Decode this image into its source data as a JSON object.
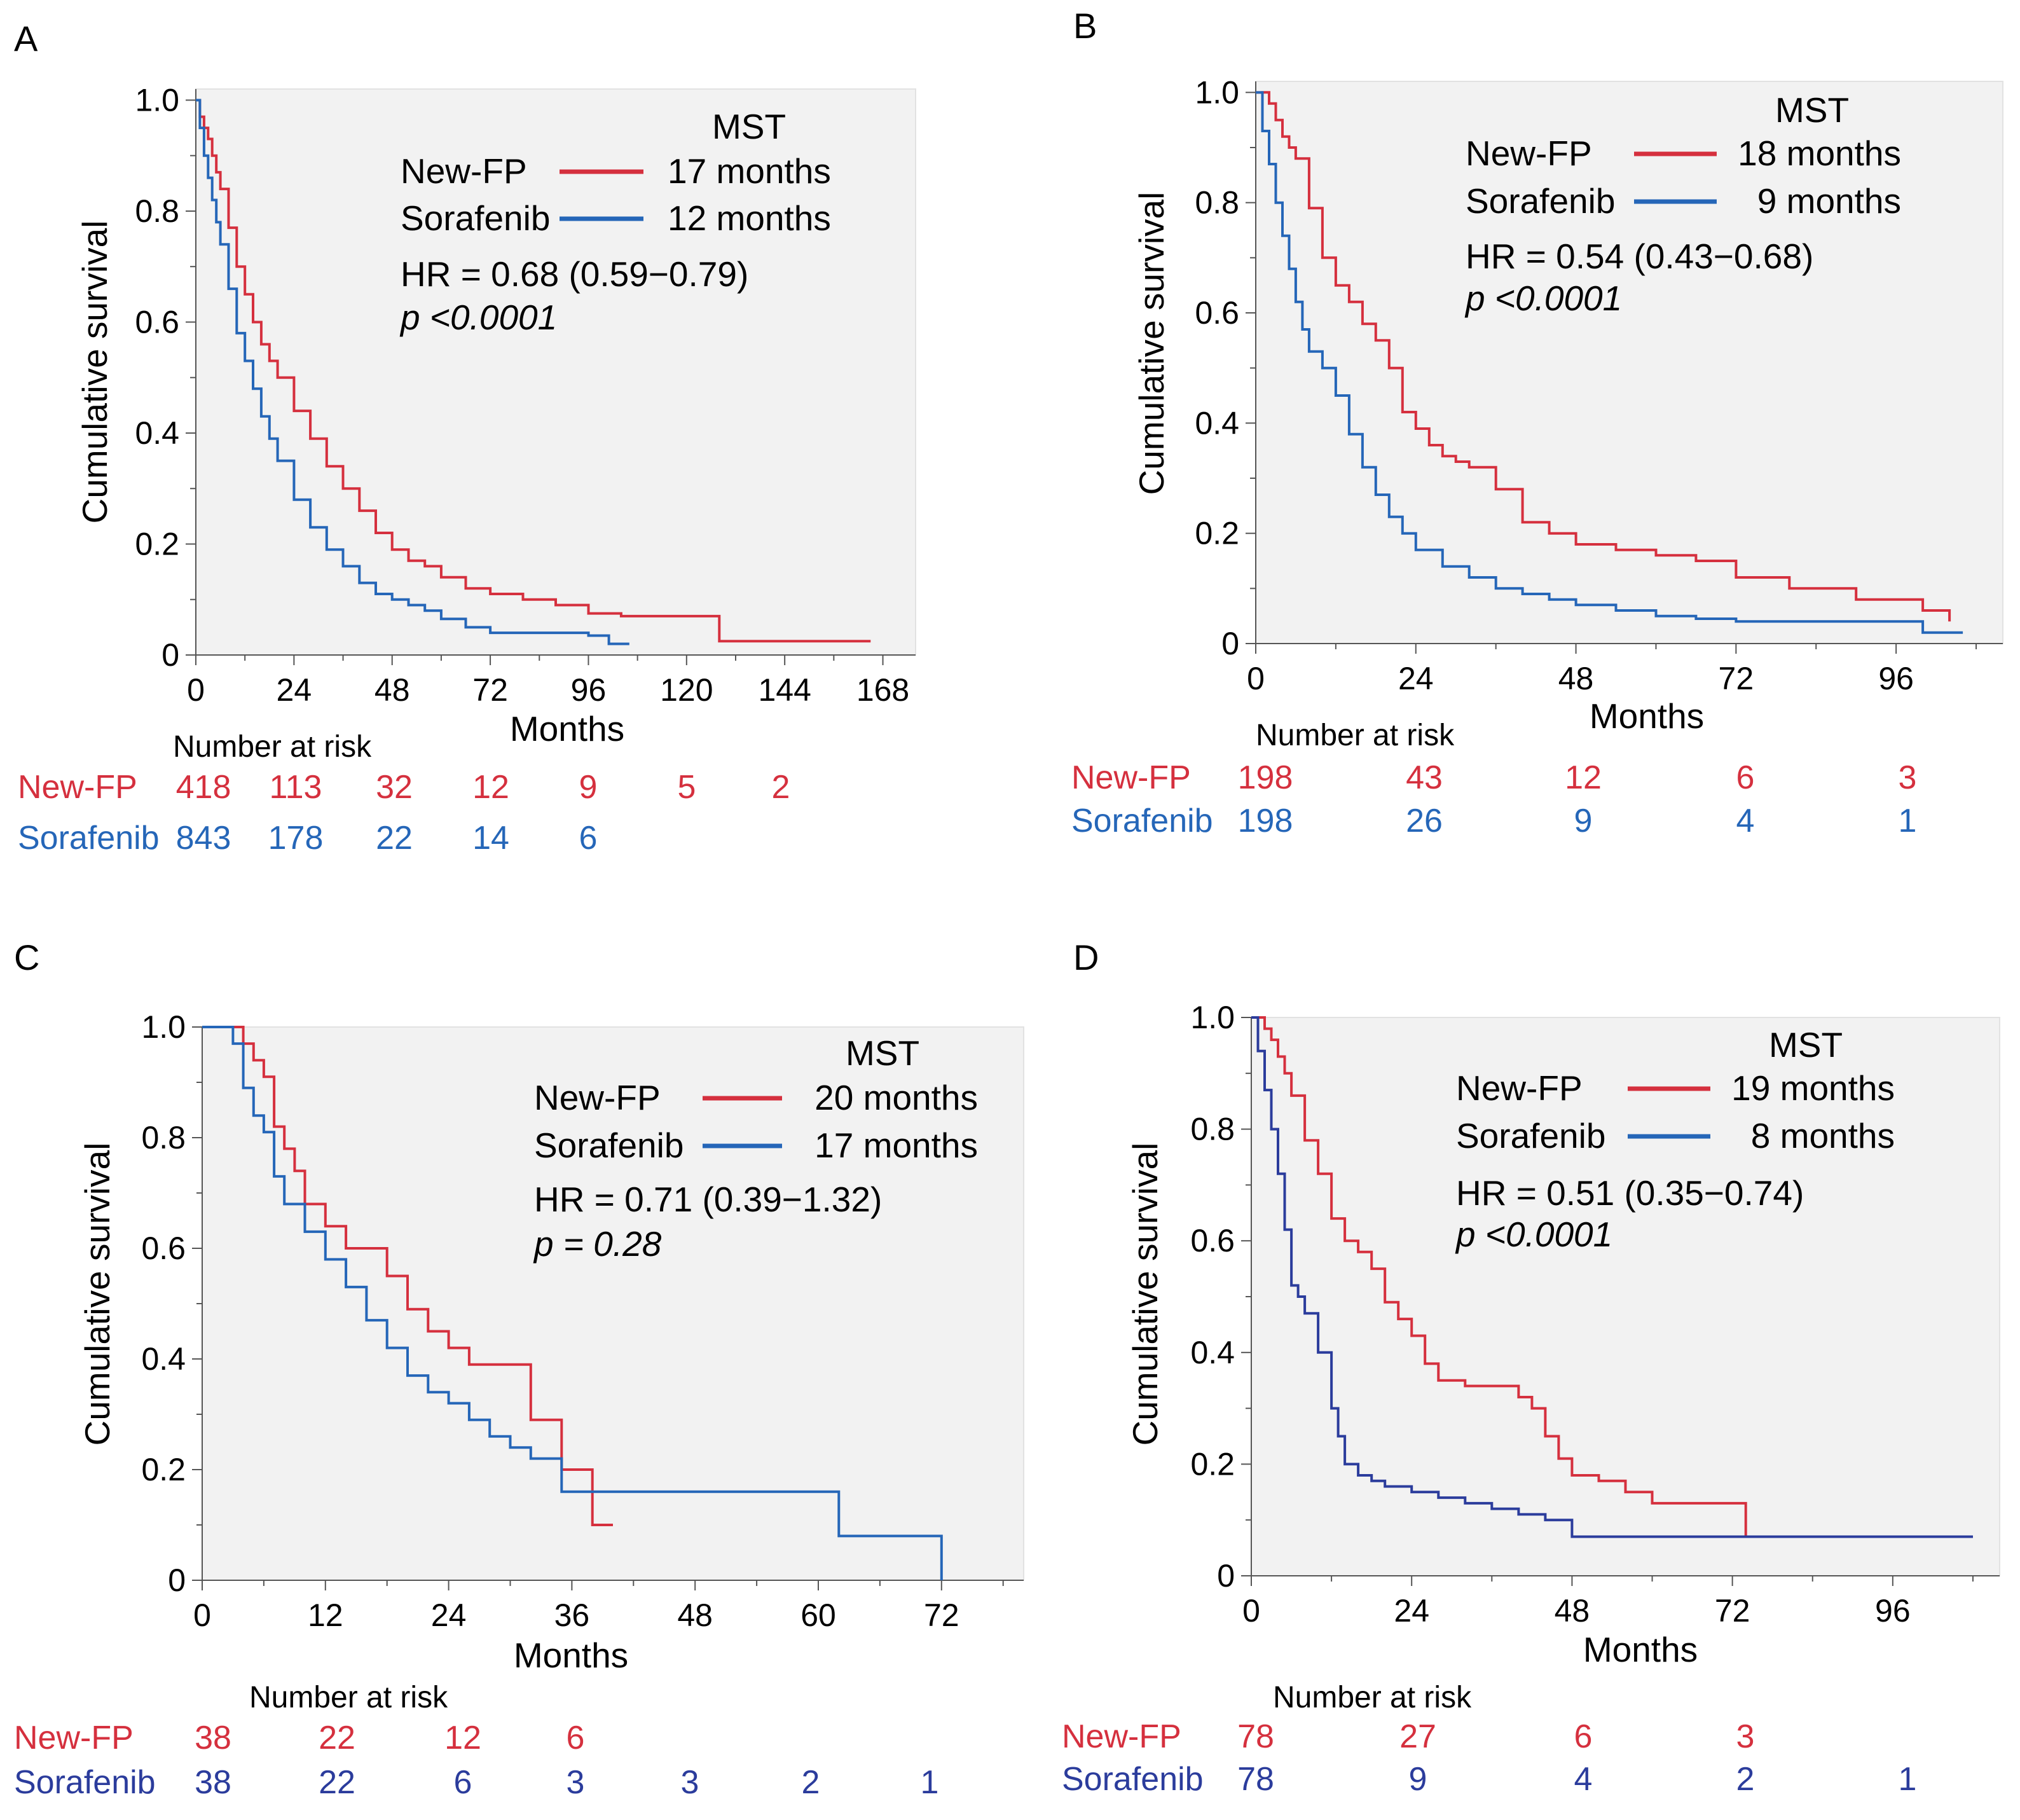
{
  "chart_data": [
    {
      "type": "line",
      "panel_label": "A",
      "ylabel": "Cumulative survival",
      "xlabel": "Months",
      "xlim": [
        0,
        176
      ],
      "ylim": [
        0,
        1.02
      ],
      "xticks": [
        "0",
        "24",
        "48",
        "72",
        "96",
        "120",
        "144",
        "168"
      ],
      "xtick_values": [
        0,
        24,
        48,
        72,
        96,
        120,
        144,
        168
      ],
      "yticks": [
        "0",
        "0.2",
        "0.4",
        "0.6",
        "0.8",
        "1.0"
      ],
      "ytick_values": [
        0,
        0.2,
        0.4,
        0.6,
        0.8,
        1.0
      ],
      "legend": {
        "header": "MST",
        "entries": [
          {
            "name": "New-FP",
            "mst": "17 months",
            "color": "#d5303e"
          },
          {
            "name": "Sorafenib",
            "mst": "12 months",
            "color": "#2566b8"
          }
        ],
        "hr": "HR = 0.68 (0.59−0.79)",
        "p": "p <0.0001"
      },
      "series": [
        {
          "name": "New-FP",
          "color": "#d5303e",
          "x": [
            0,
            1,
            2,
            3,
            4,
            5,
            6,
            8,
            10,
            12,
            14,
            16,
            18,
            20,
            24,
            28,
            32,
            36,
            40,
            44,
            48,
            52,
            56,
            60,
            66,
            72,
            80,
            88,
            96,
            104,
            112,
            120,
            128,
            136,
            150,
            165
          ],
          "y": [
            1.0,
            0.97,
            0.95,
            0.93,
            0.9,
            0.87,
            0.84,
            0.77,
            0.7,
            0.65,
            0.6,
            0.56,
            0.53,
            0.5,
            0.44,
            0.39,
            0.34,
            0.3,
            0.26,
            0.22,
            0.19,
            0.17,
            0.16,
            0.14,
            0.12,
            0.11,
            0.1,
            0.09,
            0.075,
            0.07,
            0.07,
            0.07,
            0.025,
            0.025,
            0.025,
            0.025
          ]
        },
        {
          "name": "Sorafenib",
          "color": "#2566b8",
          "x": [
            0,
            1,
            2,
            3,
            4,
            5,
            6,
            8,
            10,
            12,
            14,
            16,
            18,
            20,
            24,
            28,
            32,
            36,
            40,
            44,
            48,
            52,
            56,
            60,
            66,
            72,
            80,
            88,
            96,
            101,
            106
          ],
          "y": [
            1.0,
            0.95,
            0.9,
            0.86,
            0.82,
            0.78,
            0.74,
            0.66,
            0.58,
            0.53,
            0.48,
            0.43,
            0.39,
            0.35,
            0.28,
            0.23,
            0.19,
            0.16,
            0.13,
            0.11,
            0.1,
            0.09,
            0.08,
            0.065,
            0.05,
            0.04,
            0.04,
            0.04,
            0.035,
            0.02,
            0.02
          ]
        }
      ],
      "risk_table": {
        "title": "Number at risk",
        "rows": [
          {
            "name": "New-FP",
            "color": "#d5303e",
            "values": [
              "418",
              "113",
              "32",
              "12",
              "9",
              "5",
              "2"
            ]
          },
          {
            "name": "Sorafenib",
            "color": "#2566b8",
            "values": [
              "843",
              "178",
              "22",
              "14",
              "6"
            ]
          }
        ]
      }
    },
    {
      "type": "line",
      "panel_label": "B",
      "ylabel": "Cumulative survival",
      "xlabel": "Months",
      "xlim": [
        0,
        112
      ],
      "ylim": [
        0,
        1.02
      ],
      "xticks": [
        "0",
        "24",
        "48",
        "72",
        "96"
      ],
      "xtick_values": [
        0,
        24,
        48,
        72,
        96
      ],
      "yticks": [
        "0",
        "0.2",
        "0.4",
        "0.6",
        "0.8",
        "1.0"
      ],
      "ytick_values": [
        0,
        0.2,
        0.4,
        0.6,
        0.8,
        1.0
      ],
      "legend": {
        "header": "MST",
        "entries": [
          {
            "name": "New-FP",
            "mst": "18 months",
            "color": "#d5303e"
          },
          {
            "name": "Sorafenib",
            "mst": "9 months",
            "color": "#2566b8"
          }
        ],
        "hr": "HR =  0.54 (0.43−0.68)",
        "p": "p <0.0001"
      },
      "series": [
        {
          "name": "New-FP",
          "color": "#d5303e",
          "x": [
            0,
            1,
            2,
            3,
            4,
            5,
            6,
            8,
            10,
            12,
            14,
            16,
            18,
            20,
            22,
            24,
            26,
            28,
            30,
            32,
            36,
            40,
            44,
            48,
            54,
            60,
            66,
            72,
            80,
            90,
            100,
            104
          ],
          "y": [
            1.0,
            1.0,
            0.98,
            0.95,
            0.92,
            0.9,
            0.88,
            0.79,
            0.7,
            0.65,
            0.62,
            0.58,
            0.55,
            0.5,
            0.42,
            0.39,
            0.36,
            0.34,
            0.33,
            0.32,
            0.28,
            0.22,
            0.2,
            0.18,
            0.17,
            0.16,
            0.15,
            0.12,
            0.1,
            0.08,
            0.06,
            0.04
          ]
        },
        {
          "name": "Sorafenib",
          "color": "#2566b8",
          "x": [
            0,
            1,
            2,
            3,
            4,
            5,
            6,
            7,
            8,
            10,
            12,
            14,
            16,
            18,
            20,
            22,
            24,
            28,
            32,
            36,
            40,
            44,
            48,
            54,
            60,
            66,
            72,
            80,
            88,
            96,
            100,
            106
          ],
          "y": [
            1.0,
            0.93,
            0.87,
            0.8,
            0.74,
            0.68,
            0.62,
            0.57,
            0.53,
            0.5,
            0.45,
            0.38,
            0.32,
            0.27,
            0.23,
            0.2,
            0.17,
            0.14,
            0.12,
            0.1,
            0.09,
            0.08,
            0.07,
            0.06,
            0.05,
            0.045,
            0.04,
            0.04,
            0.04,
            0.04,
            0.02,
            0.02
          ]
        }
      ],
      "risk_table": {
        "title": "Number at risk",
        "rows": [
          {
            "name": "New-FP",
            "color": "#d5303e",
            "values": [
              "198",
              "43",
              "12",
              "6",
              "3"
            ]
          },
          {
            "name": "Sorafenib",
            "color": "#2566b8",
            "values": [
              "198",
              "26",
              "9",
              "4",
              "1"
            ]
          }
        ]
      }
    },
    {
      "type": "line",
      "panel_label": "C",
      "ylabel": "Cumulative survival",
      "xlabel": "Months",
      "xlim": [
        0,
        80
      ],
      "ylim": [
        0,
        1.0
      ],
      "xticks": [
        "0",
        "12",
        "24",
        "36",
        "48",
        "60",
        "72"
      ],
      "xtick_values": [
        0,
        12,
        24,
        36,
        48,
        60,
        72
      ],
      "yticks": [
        "0",
        "0.2",
        "0.4",
        "0.6",
        "0.8",
        "1.0"
      ],
      "ytick_values": [
        0,
        0.2,
        0.4,
        0.6,
        0.8,
        1.0
      ],
      "legend": {
        "header": "MST",
        "entries": [
          {
            "name": "New-FP",
            "mst": "20  months",
            "color": "#d5303e"
          },
          {
            "name": "Sorafenib",
            "mst": "17 months",
            "color": "#2566b8"
          }
        ],
        "hr": "HR = 0.71 (0.39−1.32)",
        "p": "p = 0.28"
      },
      "series": [
        {
          "name": "New-FP",
          "color": "#d5303e",
          "x": [
            0,
            3,
            4,
            5,
            6,
            7,
            8,
            9,
            10,
            12,
            14,
            18,
            20,
            22,
            24,
            26,
            32,
            35,
            38,
            40
          ],
          "y": [
            1.0,
            1.0,
            0.97,
            0.94,
            0.91,
            0.82,
            0.78,
            0.74,
            0.68,
            0.64,
            0.6,
            0.55,
            0.49,
            0.45,
            0.42,
            0.39,
            0.29,
            0.2,
            0.1,
            0.1
          ]
        },
        {
          "name": "Sorafenib",
          "color": "#2566b8",
          "x": [
            0,
            2,
            3,
            4,
            5,
            6,
            7,
            8,
            10,
            12,
            14,
            16,
            18,
            20,
            22,
            24,
            26,
            28,
            30,
            32,
            35,
            40,
            50,
            62,
            72,
            72
          ],
          "y": [
            1.0,
            1.0,
            0.97,
            0.89,
            0.84,
            0.81,
            0.73,
            0.68,
            0.63,
            0.58,
            0.53,
            0.47,
            0.42,
            0.37,
            0.34,
            0.32,
            0.29,
            0.26,
            0.24,
            0.22,
            0.16,
            0.16,
            0.16,
            0.08,
            0.08,
            0.0
          ]
        }
      ],
      "risk_table": {
        "title": "Number at risk",
        "rows": [
          {
            "name": "New-FP",
            "color": "#d5303e",
            "values": [
              "38",
              "22",
              "12",
              "6"
            ]
          },
          {
            "name": "Sorafenib",
            "color": "#2b3c9c",
            "values": [
              "38",
              "22",
              "6",
              "3",
              "3",
              "2",
              "1"
            ]
          }
        ]
      }
    },
    {
      "type": "line",
      "panel_label": "D",
      "ylabel": "Cumulative survival",
      "xlabel": "Months",
      "xlim": [
        0,
        112
      ],
      "ylim": [
        0,
        1.0
      ],
      "xticks": [
        "0",
        "24",
        "48",
        "72",
        "96"
      ],
      "xtick_values": [
        0,
        24,
        48,
        72,
        96
      ],
      "yticks": [
        "0",
        "0.2",
        "0.4",
        "0.6",
        "0.8",
        "1.0"
      ],
      "ytick_values": [
        0,
        0.2,
        0.4,
        0.6,
        0.8,
        1.0
      ],
      "legend": {
        "header": "MST",
        "entries": [
          {
            "name": "New-FP",
            "mst": "19 months",
            "color": "#d5303e"
          },
          {
            "name": "Sorafenib",
            "mst": "8 months",
            "color": "#2566b8"
          }
        ],
        "hr": "HR =  0.51 (0.35−0.74)",
        "p": "p <0.0001"
      },
      "series": [
        {
          "name": "New-FP",
          "color": "#d5303e",
          "x": [
            0,
            2,
            3,
            4,
            5,
            6,
            8,
            10,
            12,
            14,
            16,
            18,
            20,
            22,
            24,
            26,
            28,
            32,
            36,
            40,
            42,
            44,
            46,
            48,
            52,
            56,
            60,
            66,
            72,
            74,
            80,
            90,
            100,
            106
          ],
          "y": [
            1.0,
            0.98,
            0.96,
            0.93,
            0.9,
            0.86,
            0.78,
            0.72,
            0.64,
            0.6,
            0.58,
            0.55,
            0.49,
            0.46,
            0.43,
            0.38,
            0.35,
            0.34,
            0.34,
            0.32,
            0.3,
            0.25,
            0.21,
            0.18,
            0.17,
            0.15,
            0.13,
            0.13,
            0.13,
            0.07,
            0.07,
            0.07,
            0.07,
            0.07
          ]
        },
        {
          "name": "Sorafenib",
          "color": "#2b3c9c",
          "x": [
            0,
            1,
            2,
            3,
            4,
            5,
            6,
            7,
            8,
            10,
            12,
            13,
            14,
            16,
            18,
            20,
            24,
            28,
            32,
            36,
            40,
            44,
            48,
            54,
            60,
            72,
            84,
            96,
            100,
            108
          ],
          "y": [
            1.0,
            0.94,
            0.87,
            0.8,
            0.72,
            0.62,
            0.52,
            0.5,
            0.47,
            0.4,
            0.3,
            0.25,
            0.2,
            0.18,
            0.17,
            0.16,
            0.15,
            0.14,
            0.13,
            0.12,
            0.11,
            0.1,
            0.07,
            0.07,
            0.07,
            0.07,
            0.07,
            0.07,
            0.07,
            0.07
          ]
        }
      ],
      "risk_table": {
        "title": "Number at risk",
        "rows": [
          {
            "name": "New-FP",
            "color": "#d5303e",
            "values": [
              "78",
              "27",
              "6",
              "3"
            ]
          },
          {
            "name": "Sorafenib",
            "color": "#2b3c9c",
            "values": [
              "78",
              "9",
              "4",
              "2",
              "1"
            ]
          }
        ]
      }
    }
  ]
}
